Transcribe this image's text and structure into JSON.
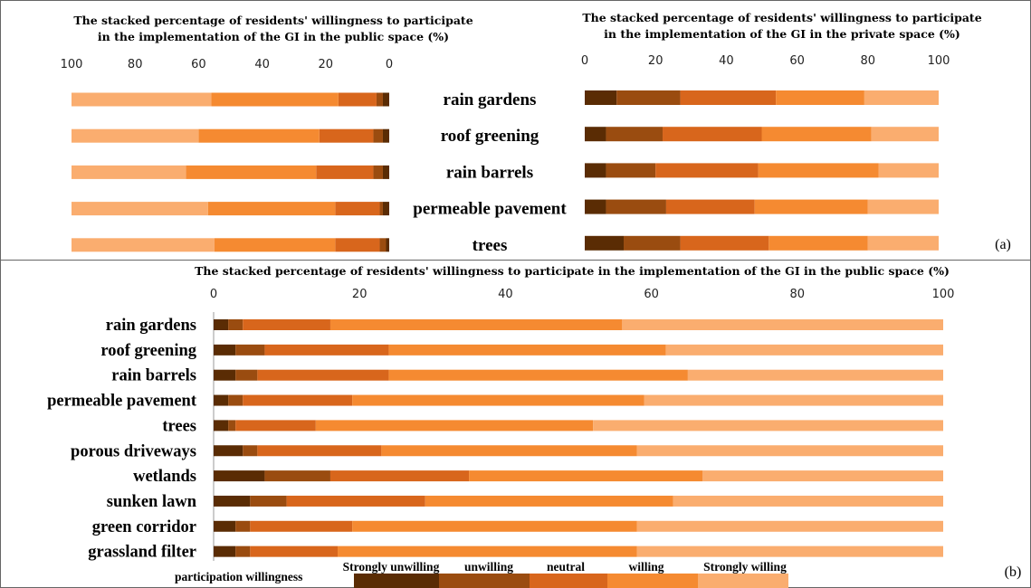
{
  "legend": {
    "title": "participation willingness",
    "entries": [
      "Strongly unwilling",
      "unwilling",
      "neutral",
      "willing",
      "Strongly willing"
    ]
  },
  "colors": [
    "#5a2c04",
    "#9a4c10",
    "#d8661c",
    "#f58a31",
    "#faad6f"
  ],
  "panel_labels": {
    "a": "(a)",
    "b": "(b)"
  },
  "chart_data": [
    {
      "type": "bar",
      "stacked": true,
      "orientation": "horizontal",
      "reversed_x": true,
      "title": "The stacked percentage of residents' willingness to participate in the implementation of the GI in the public space (%)",
      "xlim": [
        100,
        0
      ],
      "ticks": [
        100,
        80,
        60,
        40,
        20,
        0
      ],
      "categories": [
        "rain gardens",
        "roof greening",
        "rain barrels",
        "permeable pavement",
        "trees"
      ],
      "series": [
        {
          "name": "Strongly unwilling",
          "values": [
            2,
            2,
            2,
            2,
            1
          ]
        },
        {
          "name": "unwilling",
          "values": [
            2,
            3,
            3,
            1,
            2
          ]
        },
        {
          "name": "neutral",
          "values": [
            12,
            17,
            18,
            14,
            14
          ]
        },
        {
          "name": "willing",
          "values": [
            40,
            38,
            41,
            40,
            38
          ]
        },
        {
          "name": "Strongly willing",
          "values": [
            44,
            40,
            36,
            43,
            45
          ]
        }
      ]
    },
    {
      "type": "bar",
      "stacked": true,
      "orientation": "horizontal",
      "title": "The stacked percentage of residents' willingness to participate in the implementation of the GI in the private space (%)",
      "xlim": [
        0,
        100
      ],
      "ticks": [
        0,
        20,
        40,
        60,
        80,
        100
      ],
      "categories": [
        "rain gardens",
        "roof greening",
        "rain barrels",
        "permeable pavement",
        "trees"
      ],
      "series": [
        {
          "name": "Strongly unwilling",
          "values": [
            9,
            6,
            6,
            6,
            11
          ]
        },
        {
          "name": "unwilling",
          "values": [
            18,
            16,
            14,
            17,
            16
          ]
        },
        {
          "name": "neutral",
          "values": [
            27,
            28,
            29,
            25,
            25
          ]
        },
        {
          "name": "willing",
          "values": [
            25,
            31,
            34,
            32,
            28
          ]
        },
        {
          "name": "Strongly willing",
          "values": [
            21,
            19,
            17,
            20,
            20
          ]
        }
      ]
    },
    {
      "type": "bar",
      "stacked": true,
      "orientation": "horizontal",
      "title": "The stacked percentage of residents' willingness to participate in the implementation of the GI in the public space (%)",
      "xlim": [
        0,
        100
      ],
      "ticks": [
        0,
        20,
        40,
        60,
        80,
        100
      ],
      "categories": [
        "rain gardens",
        "roof greening",
        "rain barrels",
        "permeable pavement",
        "trees",
        "porous driveways",
        "wetlands",
        "sunken lawn",
        "green corridor",
        "grassland filter"
      ],
      "series": [
        {
          "name": "Strongly unwilling",
          "values": [
            2,
            3,
            3,
            2,
            2,
            4,
            7,
            5,
            3,
            3
          ]
        },
        {
          "name": "unwilling",
          "values": [
            2,
            4,
            3,
            2,
            1,
            2,
            9,
            5,
            2,
            2
          ]
        },
        {
          "name": "neutral",
          "values": [
            12,
            17,
            18,
            15,
            11,
            17,
            19,
            19,
            14,
            12
          ]
        },
        {
          "name": "willing",
          "values": [
            40,
            38,
            41,
            40,
            38,
            35,
            32,
            34,
            39,
            41
          ]
        },
        {
          "name": "Strongly willing",
          "values": [
            44,
            38,
            35,
            41,
            48,
            42,
            33,
            37,
            42,
            42
          ]
        }
      ]
    }
  ]
}
